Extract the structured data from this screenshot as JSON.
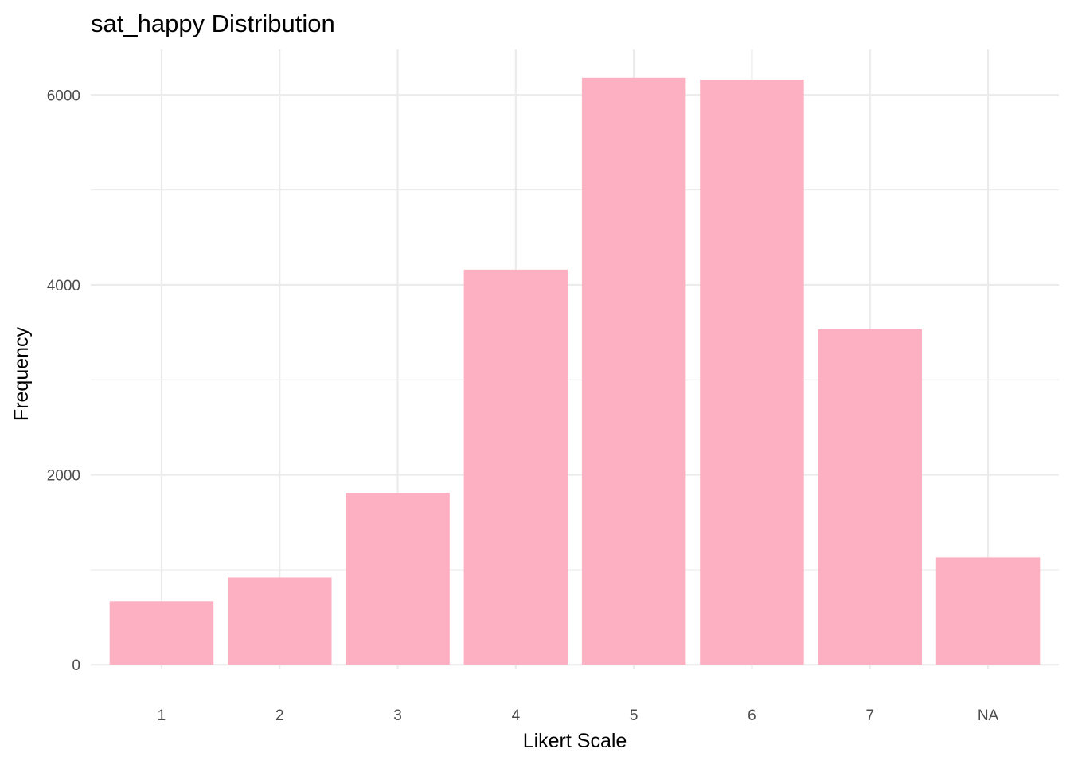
{
  "chart_data": {
    "type": "bar",
    "title": "sat_happy Distribution",
    "xlabel": "Likert Scale",
    "ylabel": "Frequency",
    "categories": [
      "1",
      "2",
      "3",
      "4",
      "5",
      "6",
      "7",
      "NA"
    ],
    "values": [
      670,
      920,
      1810,
      4160,
      6180,
      6160,
      3530,
      1130
    ],
    "ylim": [
      -40,
      6480
    ],
    "y_ticks": [
      0,
      2000,
      4000,
      6000
    ],
    "y_tick_labels": [
      "0",
      "2000",
      "4000",
      "6000"
    ],
    "grid": true,
    "bar_color": "#FCB0C1",
    "grid_color": "#EBEBEB",
    "legend": "none"
  }
}
